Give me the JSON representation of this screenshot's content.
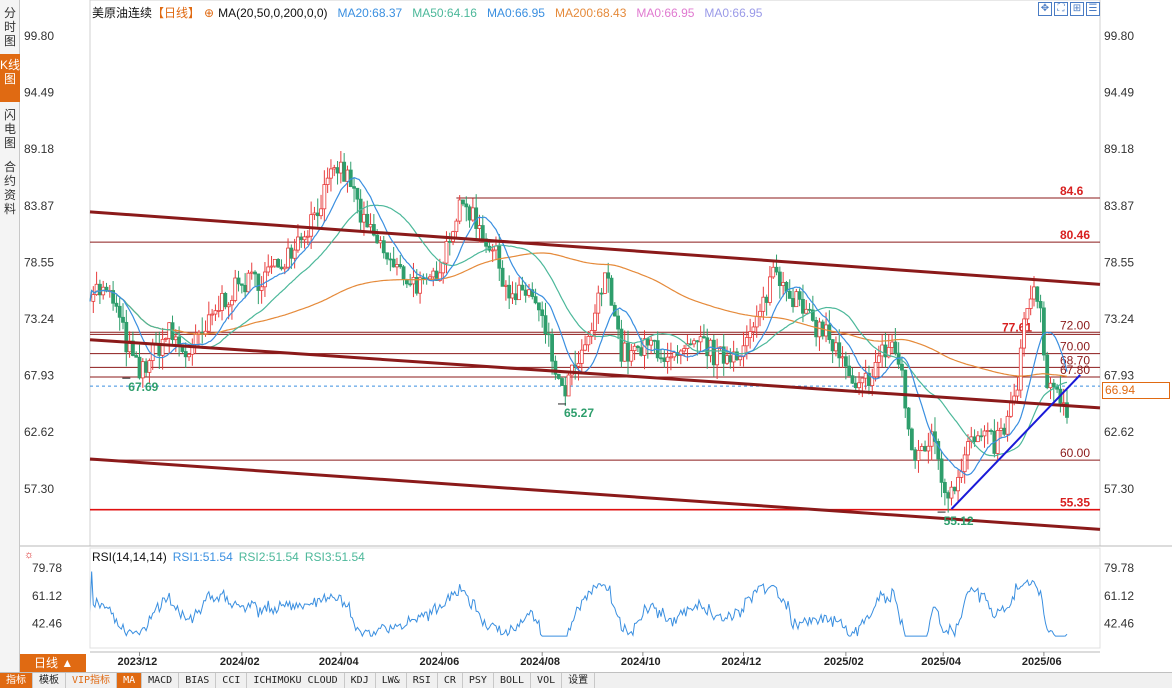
{
  "side_tabs": [
    {
      "label": "分时图",
      "active": false
    },
    {
      "label": "K线图",
      "active": true
    },
    {
      "label": "闪电图",
      "active": false
    },
    {
      "label": "合约资料",
      "active": false
    }
  ],
  "legend": {
    "title": "美原油连续",
    "period_tag": "【日线】",
    "ma_params": "MA(20,50,0,200,0,0)",
    "ma20": "MA20:68.37",
    "ma50": "MA50:64.16",
    "ma0a": "MA0:66.95",
    "ma200": "MA200:68.43",
    "ma0b": "MA0:66.95",
    "ma0c": "MA0:66.95"
  },
  "rsi_legend": {
    "title": "RSI(14,14,14)",
    "rsi1": "RSI1:51.54",
    "rsi2": "RSI2:51.54",
    "rsi3": "RSI3:51.54"
  },
  "tool_icons": [
    "move-icon",
    "fullscreen-icon",
    "zoom-icon",
    "settings-icon"
  ],
  "period_button": {
    "label": "日线 ▲"
  },
  "bottom_tabs": [
    "指标",
    "模板",
    "VIP指标",
    "MA",
    "MACD",
    "BIAS",
    "CCI",
    "ICHIMOKU CLOUD",
    "KDJ",
    "LW&",
    "RSI",
    "CR",
    "PSY",
    "BOLL",
    "VOL",
    "设置"
  ],
  "current_price": "66.94",
  "colors": {
    "up": "#e83c3c",
    "down": "#2e9e6c",
    "ma20": "#3a8fe0",
    "ma50": "#4cb89a",
    "ma200": "#e58a3a",
    "ma_pink": "#e07ad0",
    "ma_lav": "#9a9ae8",
    "channel": "#8b1a1a",
    "trend": "#1a1ad8",
    "accent": "#e06a12"
  },
  "chart_data": {
    "type": "candlestick",
    "y_ticks": [
      "99.80",
      "94.49",
      "89.18",
      "83.87",
      "78.55",
      "73.24",
      "67.93",
      "62.62",
      "57.30"
    ],
    "ylim": [
      52.5,
      101.5
    ],
    "x_ticks": [
      {
        "label": "2023/12",
        "day": 30
      },
      {
        "label": "2024/02",
        "day": 92
      },
      {
        "label": "2024/04",
        "day": 152
      },
      {
        "label": "2024/06",
        "day": 213
      },
      {
        "label": "2024/08",
        "day": 274
      },
      {
        "label": "2024/10",
        "day": 335
      },
      {
        "label": "2024/12",
        "day": 396
      },
      {
        "label": "2025/02",
        "day": 458
      },
      {
        "label": "2025/04",
        "day": 517
      },
      {
        "label": "2025/06",
        "day": 578
      }
    ],
    "x_range_days": [
      0,
      612
    ],
    "price_anchors": [
      [
        0,
        76
      ],
      [
        5,
        76
      ],
      [
        14,
        75
      ],
      [
        22,
        71
      ],
      [
        30,
        68
      ],
      [
        38,
        70
      ],
      [
        48,
        72
      ],
      [
        58,
        70
      ],
      [
        68,
        71.5
      ],
      [
        80,
        75
      ],
      [
        92,
        76.5
      ],
      [
        102,
        77
      ],
      [
        112,
        78
      ],
      [
        122,
        80
      ],
      [
        132,
        82
      ],
      [
        142,
        85
      ],
      [
        150,
        87.5
      ],
      [
        158,
        86
      ],
      [
        166,
        82
      ],
      [
        176,
        80
      ],
      [
        184,
        78
      ],
      [
        194,
        77
      ],
      [
        204,
        76
      ],
      [
        212,
        78.5
      ],
      [
        222,
        83
      ],
      [
        228,
        84
      ],
      [
        236,
        82
      ],
      [
        246,
        79
      ],
      [
        256,
        75
      ],
      [
        266,
        76
      ],
      [
        276,
        72
      ],
      [
        286,
        66
      ],
      [
        292,
        68
      ],
      [
        300,
        70
      ],
      [
        310,
        76
      ],
      [
        314,
        77.5
      ],
      [
        322,
        70
      ],
      [
        332,
        70
      ],
      [
        342,
        71
      ],
      [
        352,
        69
      ],
      [
        362,
        70
      ],
      [
        372,
        71
      ],
      [
        380,
        69.5
      ],
      [
        388,
        70
      ],
      [
        398,
        71
      ],
      [
        406,
        73.5
      ],
      [
        414,
        78
      ],
      [
        420,
        77
      ],
      [
        428,
        75
      ],
      [
        436,
        73
      ],
      [
        446,
        72
      ],
      [
        456,
        69
      ],
      [
        464,
        66
      ],
      [
        472,
        68
      ],
      [
        480,
        70
      ],
      [
        486,
        71
      ],
      [
        492,
        68
      ],
      [
        498,
        60
      ],
      [
        506,
        61.5
      ],
      [
        512,
        62
      ],
      [
        518,
        57
      ],
      [
        524,
        58
      ],
      [
        532,
        61.5
      ],
      [
        540,
        62
      ],
      [
        548,
        61.5
      ],
      [
        556,
        63.5
      ],
      [
        562,
        67
      ],
      [
        566,
        73
      ],
      [
        572,
        75.5
      ],
      [
        576,
        74
      ],
      [
        580,
        66
      ],
      [
        586,
        66.5
      ],
      [
        592,
        65
      ]
    ],
    "lows_marked": [
      {
        "day": 22,
        "value": "67.69"
      },
      {
        "day": 286,
        "value": "65.27"
      },
      {
        "day": 516,
        "value": "55.12"
      }
    ],
    "horizontal_lines": [
      {
        "value": 84.6,
        "label": "84.6",
        "color": "#8b1a1a",
        "label_color": "#d82020",
        "start_day": 222
      },
      {
        "value": 80.46,
        "label": "80.46",
        "color": "#8b1a1a",
        "label_color": "#d82020",
        "start_day": 0
      },
      {
        "value": 72.0,
        "label": "72.00",
        "color": "#8b1a1a",
        "label_color": "#8b1a1a",
        "start_day": 0
      },
      {
        "value": 71.8,
        "label": "77.61",
        "color": "#8b1a1a",
        "label_color": "#d82020",
        "start_day": 0,
        "label_offset": -58
      },
      {
        "value": 70.0,
        "label": "70.00",
        "color": "#8b1a1a",
        "label_color": "#8b1a1a",
        "start_day": 0
      },
      {
        "value": 68.7,
        "label": "68.70",
        "color": "#8b1a1a",
        "label_color": "#8b1a1a",
        "start_day": 0
      },
      {
        "value": 67.8,
        "label": "67.80",
        "color": "#8b1a1a",
        "label_color": "#8b1a1a",
        "start_day": 0
      },
      {
        "value": 60.0,
        "label": "60.00",
        "color": "#8b1a1a",
        "label_color": "#8b1a1a",
        "start_day": 0
      },
      {
        "value": 55.35,
        "label": "55.35",
        "color": "#e01010",
        "label_color": "#d82020",
        "start_day": 0
      }
    ],
    "current_price_value": 66.94,
    "channel_lines": [
      {
        "from": [
          0,
          83.3
        ],
        "to": [
          612,
          76.5
        ],
        "width": 3
      },
      {
        "from": [
          0,
          71.3
        ],
        "to": [
          612,
          64.9
        ],
        "width": 3
      },
      {
        "from": [
          0,
          60.1
        ],
        "to": [
          612,
          53.5
        ],
        "width": 3
      }
    ],
    "trend_line": {
      "from": [
        522,
        55.4
      ],
      "to": [
        600,
        68.0
      ]
    },
    "rsi": {
      "y_ticks": [
        "79.78",
        "61.12",
        "42.46"
      ],
      "ylim": [
        30,
        88
      ]
    }
  }
}
